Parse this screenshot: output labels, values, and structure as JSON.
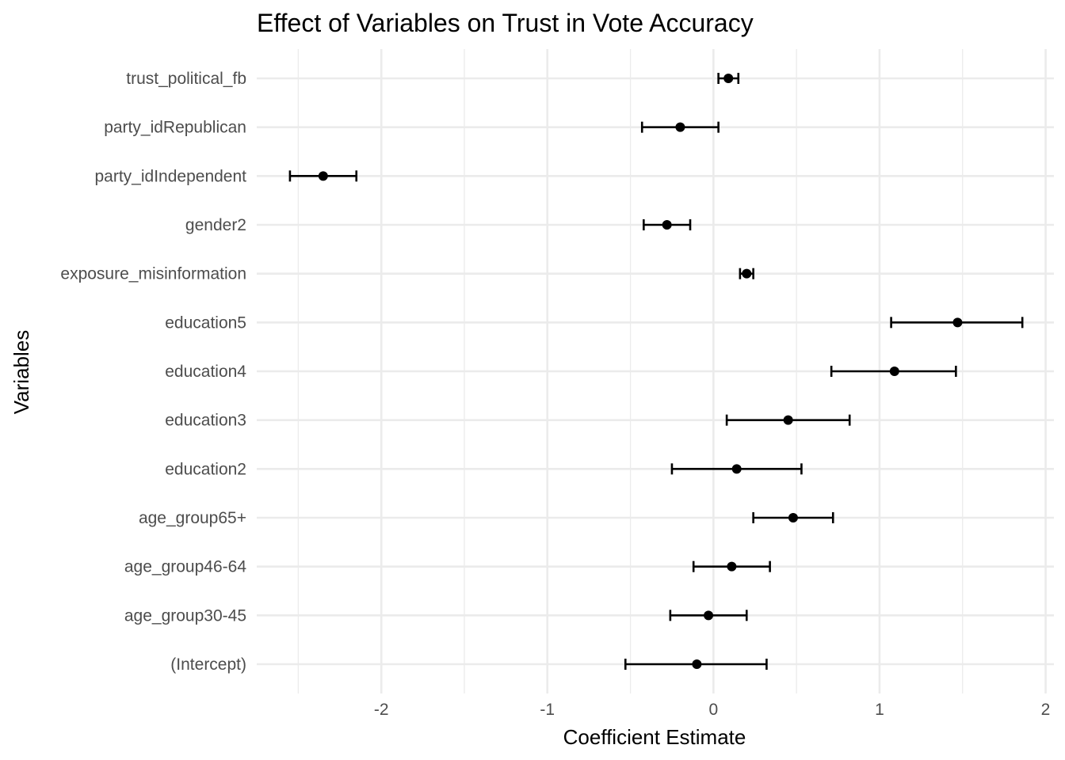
{
  "chart_data": {
    "type": "scatter",
    "title": "Effect of Variables on Trust in Vote Accuracy",
    "xlabel": "Coefficient Estimate",
    "ylabel": "Variables",
    "xlim": [
      -2.75,
      2.05
    ],
    "x_ticks": [
      -2,
      -1,
      0,
      1,
      2
    ],
    "x_tick_labels": [
      "-2",
      "-1",
      "0",
      "1",
      "2"
    ],
    "grid": true,
    "legend": "none",
    "categories": [
      "(Intercept)",
      "age_group30-45",
      "age_group46-64",
      "age_group65+",
      "education2",
      "education3",
      "education4",
      "education5",
      "exposure_misinformation",
      "gender2",
      "party_idIndependent",
      "party_idRepublican",
      "trust_political_fb"
    ],
    "estimates": [
      -0.1,
      -0.03,
      0.11,
      0.48,
      0.14,
      0.45,
      1.09,
      1.47,
      0.2,
      -0.28,
      -2.35,
      -0.2,
      0.09
    ],
    "ci_low": [
      -0.53,
      -0.26,
      -0.12,
      0.24,
      -0.25,
      0.08,
      0.71,
      1.07,
      0.16,
      -0.42,
      -2.55,
      -0.43,
      0.03
    ],
    "ci_high": [
      0.32,
      0.2,
      0.34,
      0.72,
      0.53,
      0.82,
      1.46,
      1.86,
      0.24,
      -0.14,
      -2.15,
      0.03,
      0.15
    ],
    "colors": {
      "point": "#000000",
      "grid": "#ebebeb",
      "text": "#4d4d4d"
    }
  }
}
